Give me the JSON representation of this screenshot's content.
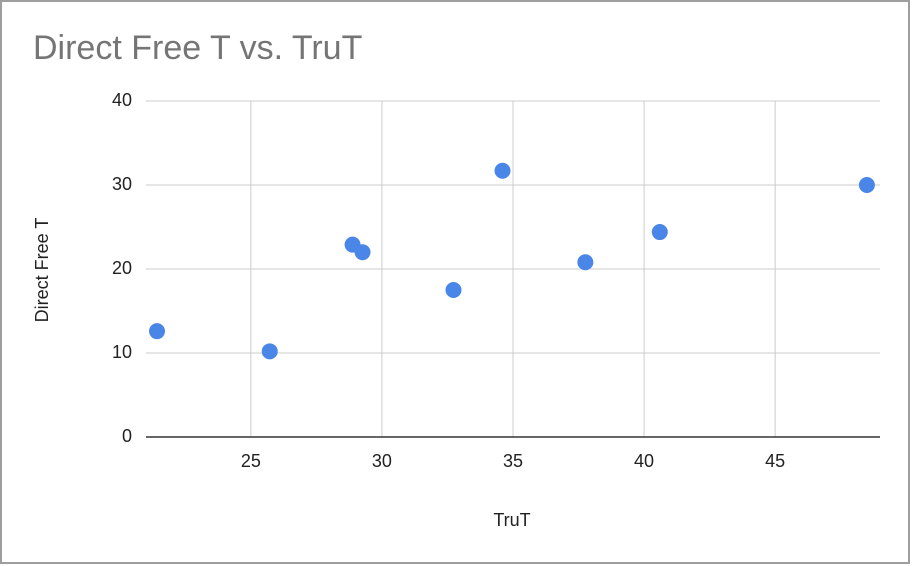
{
  "chart_data": {
    "type": "scatter",
    "title": "Direct Free T vs. TruT",
    "x_label": "TruT",
    "y_label": "Direct Free T",
    "series": [
      {
        "name": "Direct Free T",
        "color": "#4a86e8",
        "x": [
          21.42,
          25.72,
          28.88,
          29.26,
          32.73,
          34.6,
          37.76,
          40.6,
          48.5
        ],
        "values": [
          12.6,
          10.2,
          22.9,
          22.0,
          17.5,
          31.7,
          20.8,
          24.4,
          30.0
        ]
      }
    ],
    "xlim": [
      21,
      49
    ],
    "xticks": [
      25,
      30,
      35,
      40,
      45
    ],
    "ylim": [
      0,
      40
    ],
    "yticks": [
      0,
      10,
      20,
      30,
      40
    ],
    "grid": true
  }
}
